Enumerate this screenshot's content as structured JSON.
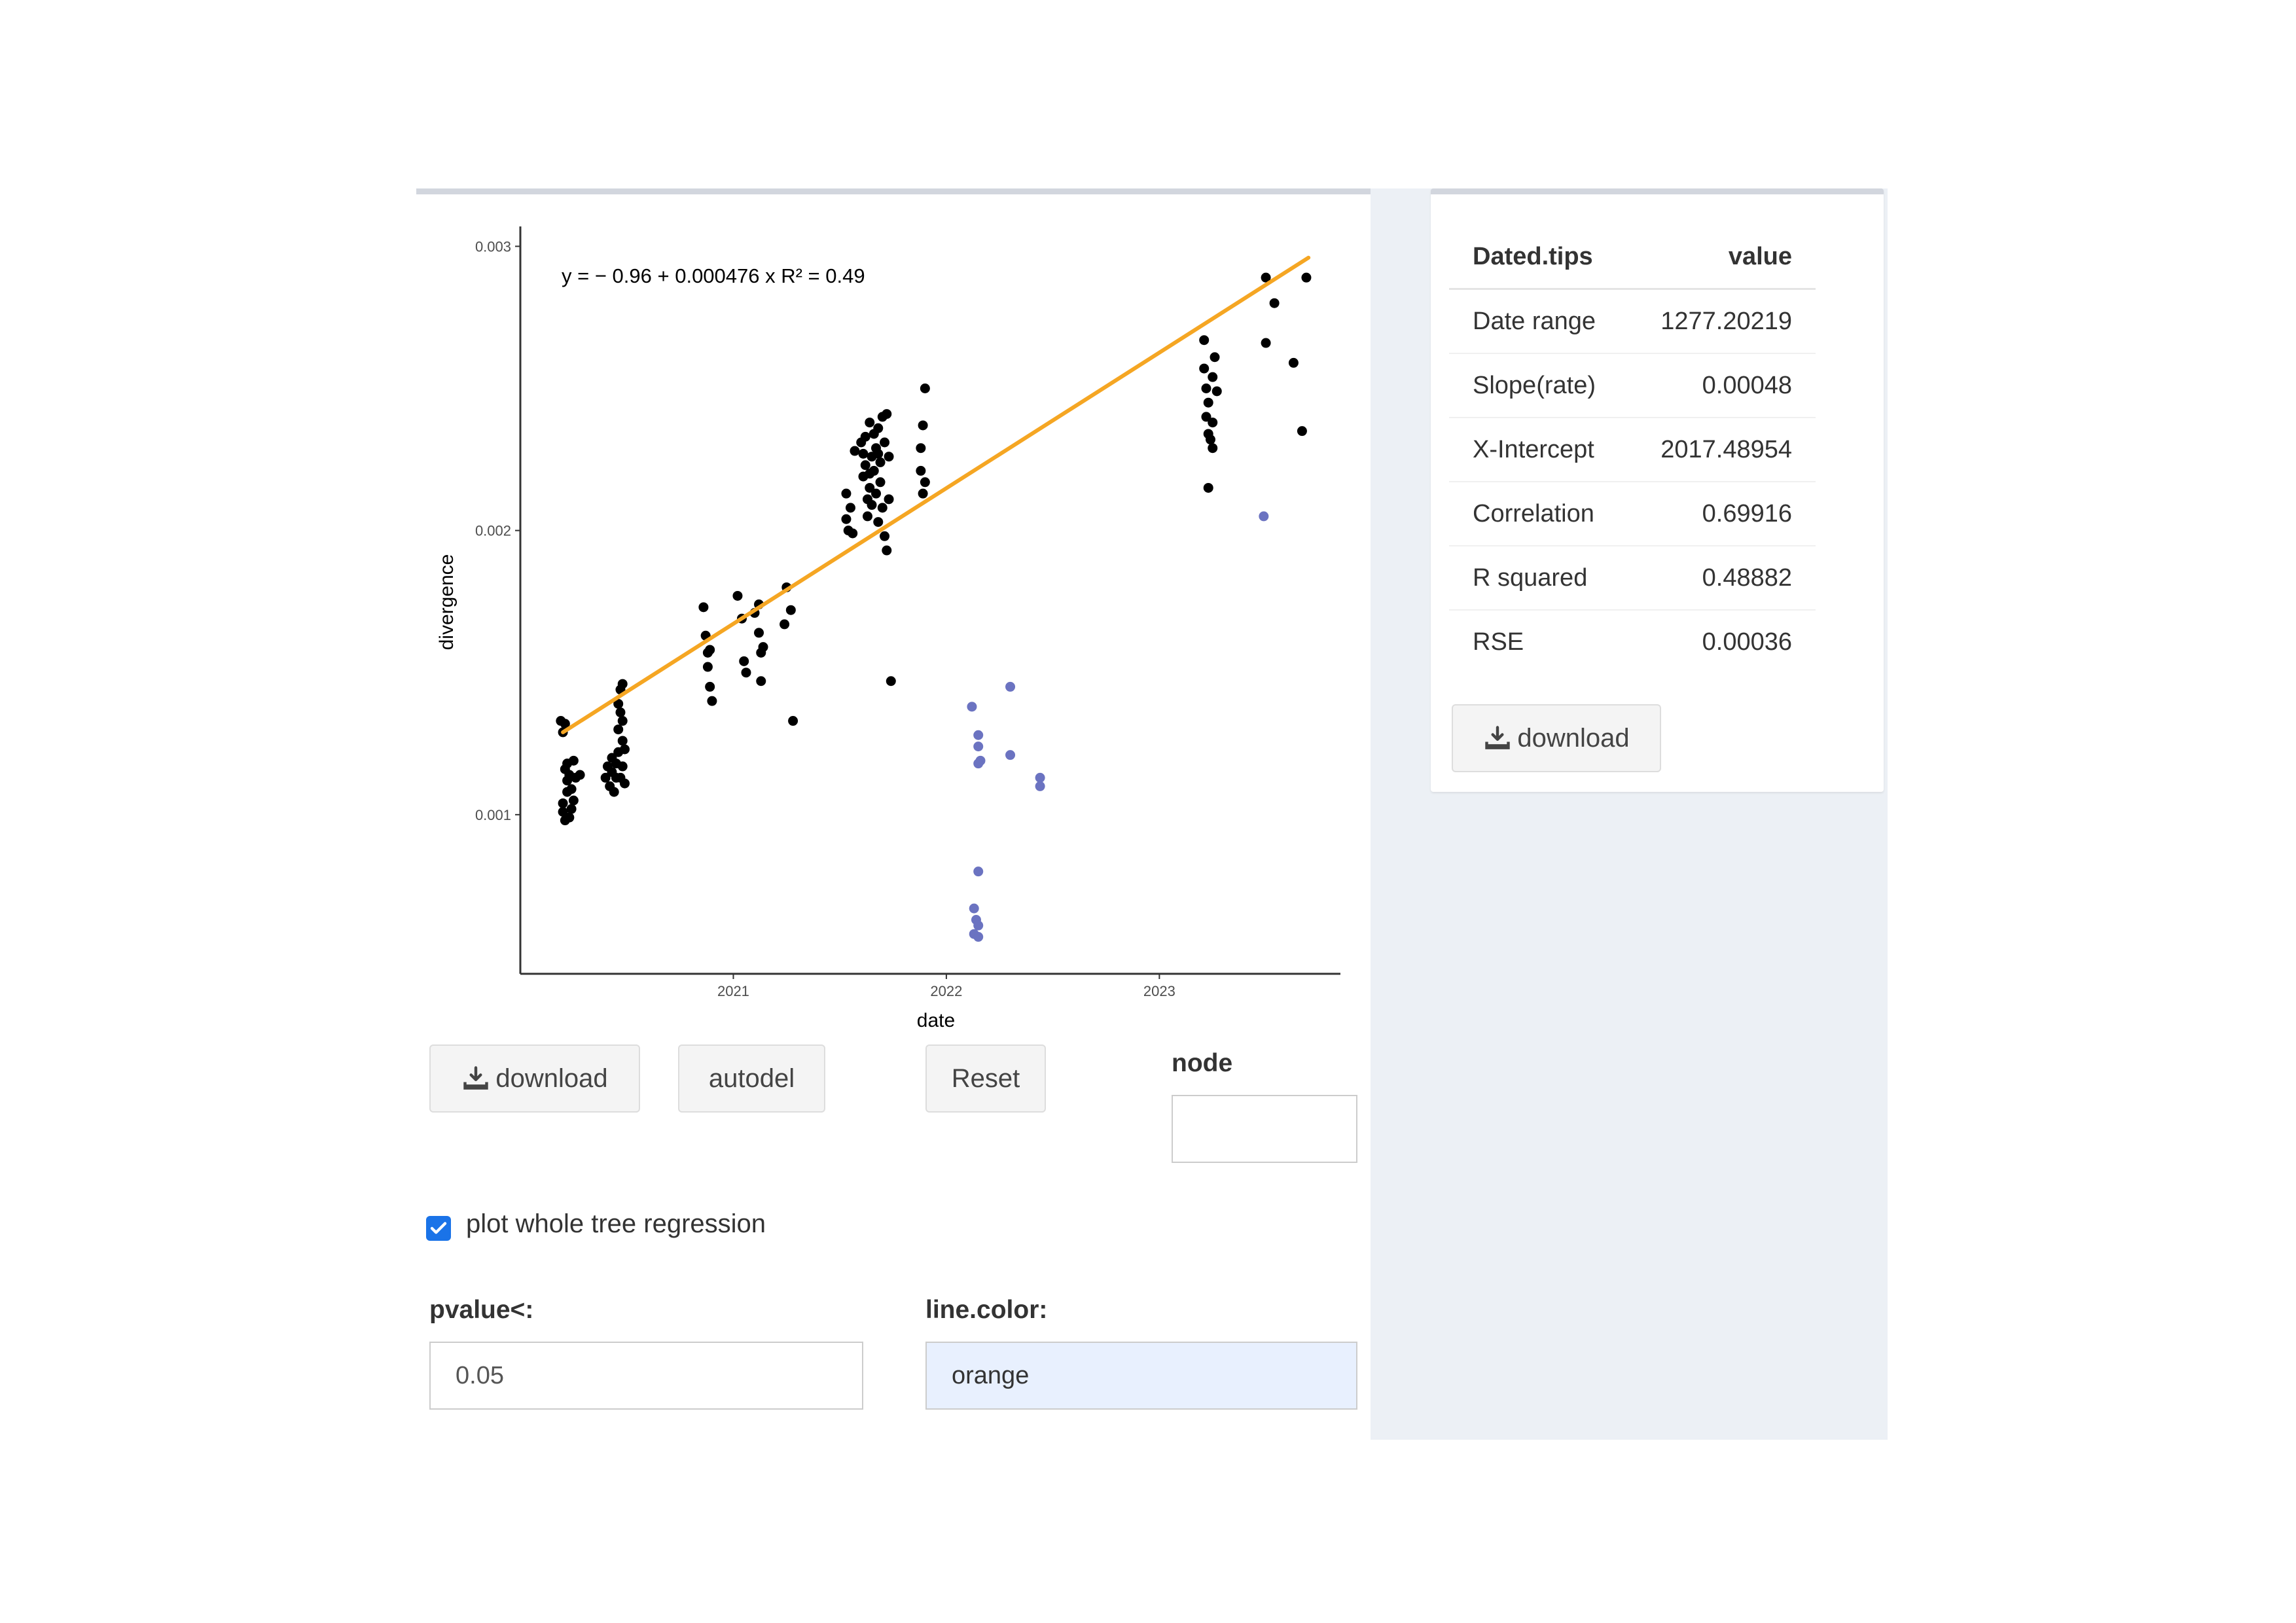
{
  "chart_data": {
    "type": "scatter",
    "equation": "y = − 0.96 + 0.000476 x   R² = 0.49",
    "xlabel": "date",
    "ylabel": "divergence",
    "x_ticks": [
      {
        "value": 2021,
        "label": "2021"
      },
      {
        "value": 2022,
        "label": "2022"
      },
      {
        "value": 2023,
        "label": "2023"
      }
    ],
    "y_ticks": [
      {
        "value": 0.001,
        "label": "0.001"
      },
      {
        "value": 0.002,
        "label": "0.002"
      },
      {
        "value": 0.003,
        "label": "0.003"
      }
    ],
    "xlim": [
      2020.0,
      2023.85
    ],
    "ylim": [
      0.00044,
      0.00307
    ],
    "grid": false,
    "regression_line": {
      "x": [
        2020.2,
        2023.7
      ],
      "y": [
        0.00129,
        0.00296
      ],
      "color": "#f5a623"
    },
    "series": [
      {
        "color": "#000000",
        "points": [
          [
            2020.19,
            0.00133
          ],
          [
            2020.2,
            0.00129
          ],
          [
            2020.21,
            0.00132
          ],
          [
            2020.2,
            0.00104
          ],
          [
            2020.21,
            0.00098
          ],
          [
            2020.2,
            0.00101
          ],
          [
            2020.22,
            0.00108
          ],
          [
            2020.22,
            0.00112
          ],
          [
            2020.23,
            0.00114
          ],
          [
            2020.21,
            0.00116
          ],
          [
            2020.23,
            0.00099
          ],
          [
            2020.24,
            0.00102
          ],
          [
            2020.24,
            0.00109
          ],
          [
            2020.25,
            0.00119
          ],
          [
            2020.26,
            0.00113
          ],
          [
            2020.28,
            0.00114
          ],
          [
            2020.25,
            0.00105
          ],
          [
            2020.22,
            0.00118
          ],
          [
            2020.4,
            0.00113
          ],
          [
            2020.41,
            0.00117
          ],
          [
            2020.42,
            0.0011
          ],
          [
            2020.43,
            0.00115
          ],
          [
            2020.43,
            0.0012
          ],
          [
            2020.44,
            0.00108
          ],
          [
            2020.45,
            0.00113
          ],
          [
            2020.45,
            0.00118
          ],
          [
            2020.46,
            0.00122
          ],
          [
            2020.46,
            0.0013
          ],
          [
            2020.47,
            0.00136
          ],
          [
            2020.47,
            0.00144
          ],
          [
            2020.46,
            0.00139
          ],
          [
            2020.48,
            0.00126
          ],
          [
            2020.48,
            0.00133
          ],
          [
            2020.48,
            0.00117
          ],
          [
            2020.49,
            0.00111
          ],
          [
            2020.49,
            0.00123
          ],
          [
            2020.47,
            0.00113
          ],
          [
            2020.48,
            0.00146
          ],
          [
            2020.86,
            0.00173
          ],
          [
            2020.87,
            0.00163
          ],
          [
            2020.88,
            0.00157
          ],
          [
            2020.88,
            0.00152
          ],
          [
            2020.89,
            0.00145
          ],
          [
            2020.9,
            0.0014
          ],
          [
            2020.89,
            0.00158
          ],
          [
            2021.02,
            0.00177
          ],
          [
            2021.04,
            0.00169
          ],
          [
            2021.05,
            0.00154
          ],
          [
            2021.06,
            0.0015
          ],
          [
            2021.1,
            0.00171
          ],
          [
            2021.12,
            0.00164
          ],
          [
            2021.13,
            0.00157
          ],
          [
            2021.13,
            0.00147
          ],
          [
            2021.12,
            0.00174
          ],
          [
            2021.14,
            0.00159
          ],
          [
            2021.24,
            0.00167
          ],
          [
            2021.25,
            0.0018
          ],
          [
            2021.27,
            0.00172
          ],
          [
            2021.28,
            0.00133
          ],
          [
            2021.53,
            0.00213
          ],
          [
            2021.53,
            0.00204
          ],
          [
            2021.54,
            0.002
          ],
          [
            2021.55,
            0.00208
          ],
          [
            2021.56,
            0.00199
          ],
          [
            2021.57,
            0.00228
          ],
          [
            2021.6,
            0.00231
          ],
          [
            2021.61,
            0.00227
          ],
          [
            2021.61,
            0.00219
          ],
          [
            2021.62,
            0.00233
          ],
          [
            2021.62,
            0.00223
          ],
          [
            2021.63,
            0.00211
          ],
          [
            2021.63,
            0.00205
          ],
          [
            2021.64,
            0.00238
          ],
          [
            2021.64,
            0.00215
          ],
          [
            2021.65,
            0.00226
          ],
          [
            2021.65,
            0.00209
          ],
          [
            2021.66,
            0.00234
          ],
          [
            2021.66,
            0.00221
          ],
          [
            2021.67,
            0.00229
          ],
          [
            2021.67,
            0.00213
          ],
          [
            2021.68,
            0.00203
          ],
          [
            2021.68,
            0.00236
          ],
          [
            2021.69,
            0.00224
          ],
          [
            2021.69,
            0.00217
          ],
          [
            2021.7,
            0.0024
          ],
          [
            2021.7,
            0.00208
          ],
          [
            2021.71,
            0.00231
          ],
          [
            2021.71,
            0.00198
          ],
          [
            2021.72,
            0.00193
          ],
          [
            2021.72,
            0.00241
          ],
          [
            2021.73,
            0.00226
          ],
          [
            2021.73,
            0.00211
          ],
          [
            2021.74,
            0.00147
          ],
          [
            2021.68,
            0.00227
          ],
          [
            2021.64,
            0.0022
          ],
          [
            2021.9,
            0.0025
          ],
          [
            2021.89,
            0.00237
          ],
          [
            2021.88,
            0.00229
          ],
          [
            2021.88,
            0.00221
          ],
          [
            2021.89,
            0.00213
          ],
          [
            2021.9,
            0.00217
          ],
          [
            2023.21,
            0.00267
          ],
          [
            2023.21,
            0.00257
          ],
          [
            2023.22,
            0.0025
          ],
          [
            2023.23,
            0.00245
          ],
          [
            2023.22,
            0.0024
          ],
          [
            2023.23,
            0.00234
          ],
          [
            2023.24,
            0.00232
          ],
          [
            2023.25,
            0.00254
          ],
          [
            2023.25,
            0.00238
          ],
          [
            2023.26,
            0.00261
          ],
          [
            2023.25,
            0.00229
          ],
          [
            2023.23,
            0.00215
          ],
          [
            2023.27,
            0.00249
          ],
          [
            2023.5,
            0.00289
          ],
          [
            2023.54,
            0.0028
          ],
          [
            2023.5,
            0.00266
          ],
          [
            2023.63,
            0.00259
          ],
          [
            2023.67,
            0.00235
          ],
          [
            2023.69,
            0.00289
          ]
        ]
      },
      {
        "color": "#6b73c1",
        "points": [
          [
            2022.12,
            0.00138
          ],
          [
            2022.15,
            0.00128
          ],
          [
            2022.15,
            0.00124
          ],
          [
            2022.16,
            0.00119
          ],
          [
            2022.15,
            0.00118
          ],
          [
            2022.15,
            0.0008
          ],
          [
            2022.13,
            0.00067
          ],
          [
            2022.14,
            0.00063
          ],
          [
            2022.15,
            0.00061
          ],
          [
            2022.13,
            0.00058
          ],
          [
            2022.15,
            0.00057
          ],
          [
            2022.3,
            0.00145
          ],
          [
            2022.3,
            0.00121
          ],
          [
            2022.44,
            0.00113
          ],
          [
            2022.44,
            0.0011
          ],
          [
            2023.49,
            0.00205
          ]
        ]
      }
    ]
  },
  "buttons": {
    "download": "download",
    "autodel": "autodel",
    "reset": "Reset"
  },
  "node": {
    "label": "node",
    "value": ""
  },
  "checkbox": {
    "label": "plot whole tree regression",
    "checked": true
  },
  "pvalue": {
    "label": "pvalue<:",
    "value": "0.05"
  },
  "line_color": {
    "label": "line.color:",
    "value": "orange"
  },
  "stats": {
    "headers": [
      "Dated.tips",
      "value"
    ],
    "rows": [
      [
        "Date range",
        "1277.20219"
      ],
      [
        "Slope(rate)",
        "0.00048"
      ],
      [
        "X-Intercept",
        "2017.48954"
      ],
      [
        "Correlation",
        "0.69916"
      ],
      [
        "R squared",
        "0.48882"
      ],
      [
        "RSE",
        "0.00036"
      ]
    ],
    "download": "download"
  },
  "colors": {
    "accent": "#1a73e8",
    "line": "#f5a623",
    "highlight_input": "#e8f0fe"
  }
}
